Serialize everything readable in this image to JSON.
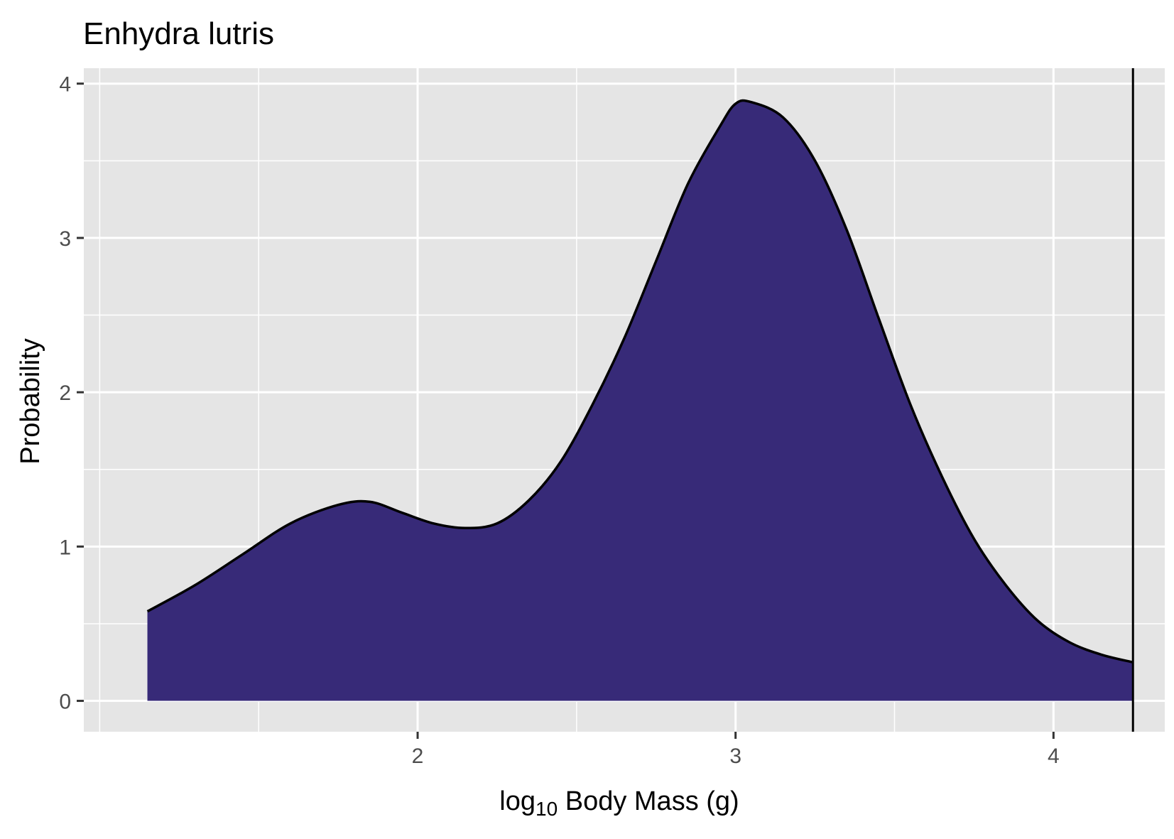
{
  "chart_data": {
    "type": "area",
    "title": "Enhydra lutris",
    "xlabel_parts": {
      "base": "log",
      "sub": "10",
      "rest": " Body Mass (g)"
    },
    "ylabel": "Probability",
    "xlim": [
      0.95,
      4.35
    ],
    "ylim": [
      -0.2,
      4.1
    ],
    "x_ticks": [
      2,
      3,
      4
    ],
    "x_tick_labels": [
      "2",
      "3",
      "4"
    ],
    "x_minor_gridlines": [
      1.5,
      2.5,
      3.5
    ],
    "y_ticks": [
      0,
      1,
      2,
      3,
      4
    ],
    "y_tick_labels": [
      "0",
      "1",
      "2",
      "3",
      "4"
    ],
    "y_minor_gridlines": [
      0.5,
      1.5,
      2.5,
      3.5
    ],
    "x_extra_gridline": 1.0,
    "grid": true,
    "reference_line_x": 4.25,
    "series": [
      {
        "x": [
          1.15,
          1.3,
          1.45,
          1.6,
          1.75,
          1.85,
          1.95,
          2.05,
          2.15,
          2.25,
          2.35,
          2.45,
          2.55,
          2.65,
          2.75,
          2.85,
          2.95,
          3.0,
          3.05,
          3.15,
          3.25,
          3.35,
          3.45,
          3.55,
          3.65,
          3.75,
          3.85,
          3.95,
          4.05,
          4.15,
          4.25
        ],
        "y": [
          0.58,
          0.75,
          0.95,
          1.15,
          1.27,
          1.29,
          1.22,
          1.15,
          1.12,
          1.15,
          1.3,
          1.55,
          1.92,
          2.35,
          2.85,
          3.35,
          3.72,
          3.87,
          3.88,
          3.78,
          3.5,
          3.05,
          2.48,
          1.92,
          1.45,
          1.05,
          0.75,
          0.52,
          0.38,
          0.3,
          0.25
        ],
        "fill": "#372a78",
        "stroke": "#000000"
      }
    ],
    "background": "#e5e5e5",
    "gridline_color": "#ffffff"
  }
}
